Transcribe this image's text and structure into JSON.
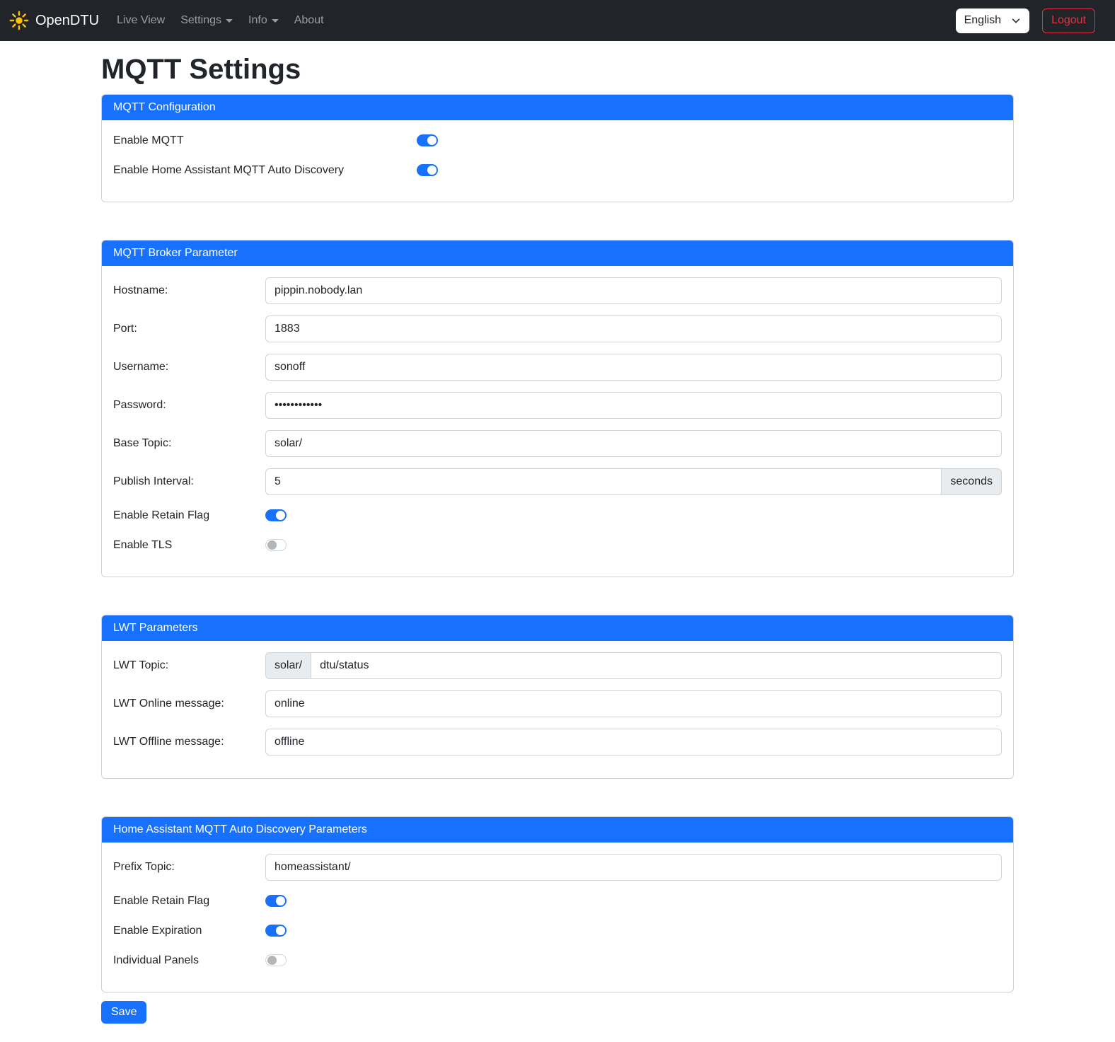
{
  "navbar": {
    "brand": "OpenDTU",
    "items": [
      {
        "label": "Live View",
        "dropdown": false
      },
      {
        "label": "Settings",
        "dropdown": true
      },
      {
        "label": "Info",
        "dropdown": true
      },
      {
        "label": "About",
        "dropdown": false
      }
    ],
    "language": "English",
    "logout_label": "Logout"
  },
  "page": {
    "title": "MQTT Settings"
  },
  "cards": [
    {
      "title": "MQTT Configuration",
      "switches": [
        {
          "label": "Enable MQTT",
          "on": true
        },
        {
          "label": "Enable Home Assistant MQTT Auto Discovery",
          "on": true
        }
      ]
    },
    {
      "title": "MQTT Broker Parameter",
      "fields": [
        {
          "label": "Hostname:",
          "value": "pippin.nobody.lan"
        },
        {
          "label": "Port:",
          "value": "1883"
        },
        {
          "label": "Username:",
          "value": "sonoff"
        },
        {
          "label": "Password:",
          "value": "••••••••••••"
        },
        {
          "label": "Base Topic:",
          "value": "solar/"
        },
        {
          "label": "Publish Interval:",
          "value": "5",
          "suffix": "seconds"
        }
      ],
      "switches": [
        {
          "label": "Enable Retain Flag",
          "on": true
        },
        {
          "label": "Enable TLS",
          "on": false
        }
      ]
    },
    {
      "title": "LWT Parameters",
      "fields": [
        {
          "label": "LWT Topic:",
          "prefix": "solar/",
          "value": "dtu/status"
        },
        {
          "label": "LWT Online message:",
          "value": "online"
        },
        {
          "label": "LWT Offline message:",
          "value": "offline"
        }
      ]
    },
    {
      "title": "Home Assistant MQTT Auto Discovery Parameters",
      "fields": [
        {
          "label": "Prefix Topic:",
          "value": "homeassistant/"
        }
      ],
      "switches": [
        {
          "label": "Enable Retain Flag",
          "on": true
        },
        {
          "label": "Enable Expiration",
          "on": true
        },
        {
          "label": "Individual Panels",
          "on": false
        }
      ]
    }
  ],
  "save_label": "Save",
  "colors": {
    "primary": "#1871fd",
    "navbar_bg": "#212529",
    "sun_icon": "#ffc107",
    "logout_danger": "#dc3545",
    "addon_bg": "#e9ecef"
  }
}
